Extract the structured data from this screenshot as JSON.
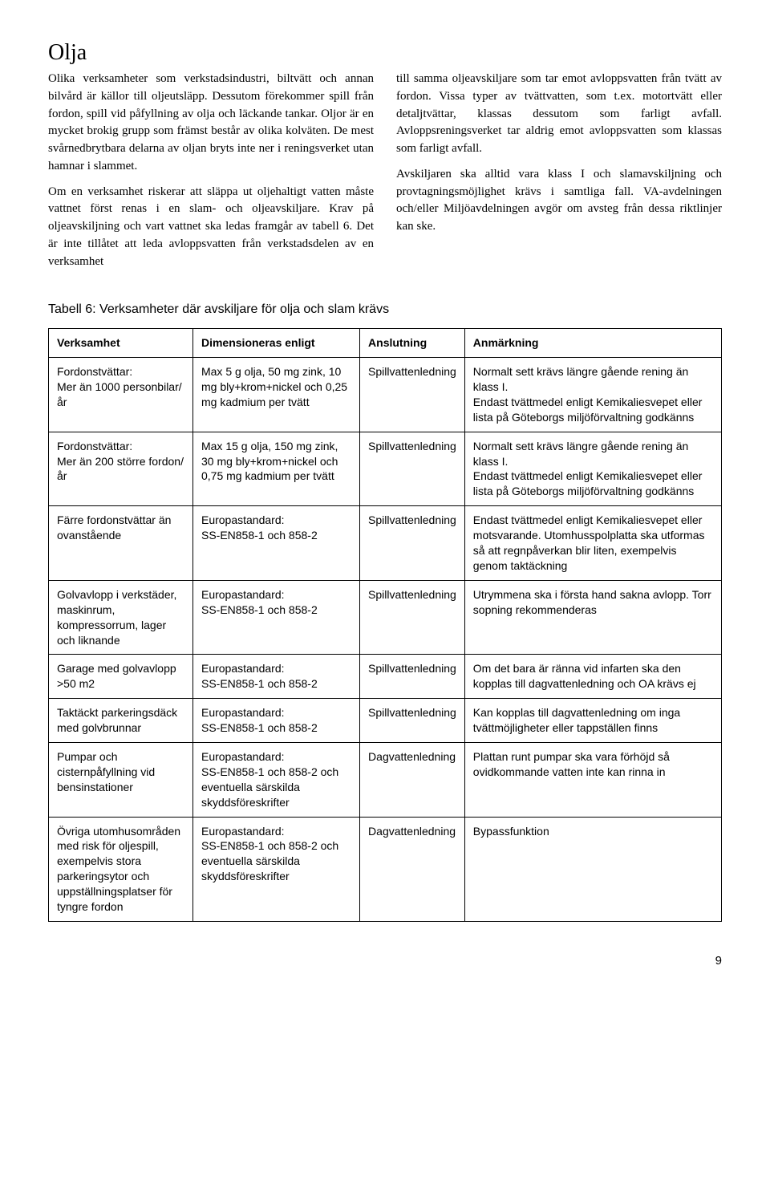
{
  "heading": "Olja",
  "left_column": {
    "p1": "Olika verksamheter som verkstadsindustri, biltvätt och annan bilvård är källor till oljeutsläpp. Dessutom förekommer spill från fordon, spill vid påfyllning av olja och läckande tankar. Oljor är en mycket brokig grupp som främst består av olika kolväten. De mest svårnedbrytbara delarna av oljan bryts inte ner i reningsverket utan hamnar i slammet.",
    "p2": "Om en verksamhet riskerar att släppa ut oljehaltigt vatten måste vattnet först renas i en slam- och oljeavskiljare. Krav på oljeavskiljning och vart vattnet ska ledas framgår av tabell 6. Det är inte tillåtet att leda avloppsvatten från verkstadsdelen av en verksamhet"
  },
  "right_column": {
    "p1": "till samma oljeavskiljare som tar emot avloppsvatten från tvätt av fordon. Vissa typer av tvättvatten, som t.ex. motortvätt eller detaljtvättar, klassas dessutom som farligt avfall. Avloppsreningsverket tar aldrig emot avloppsvatten som klassas som farligt avfall.",
    "p2": "Avskiljaren ska alltid vara klass I och slamavskiljning och provtagningsmöjlighet krävs i samtliga fall. VA-avdelningen och/eller Miljöavdelningen avgör om avsteg från dessa riktlinjer kan ske."
  },
  "table_caption": "Tabell 6: Verksamheter där avskiljare för olja och slam krävs",
  "table": {
    "headers": [
      "Verksamhet",
      "Dimensioneras enligt",
      "Anslutning",
      "Anmärkning"
    ],
    "rows": [
      {
        "verksamhet": "Fordonstvättar:\nMer än 1000 personbilar/år",
        "dim": "Max 5 g olja, 50 mg zink, 10 mg bly+krom+nickel och 0,25 mg kadmium per tvätt",
        "anslut": "Spillvattenledning",
        "anm": "Normalt sett krävs längre gående rening än klass I.\nEndast tvättmedel enligt Kemikaliesvepet eller lista på Göteborgs miljöförvaltning godkänns"
      },
      {
        "verksamhet": "Fordonstvättar:\nMer än 200 större fordon/år",
        "dim": "Max 15 g olja, 150 mg zink, 30 mg bly+krom+nickel och 0,75 mg kadmium per tvätt",
        "anslut": "Spillvattenledning",
        "anm": "Normalt sett krävs längre gående rening än klass I.\nEndast tvättmedel enligt Kemikaliesvepet eller lista på Göteborgs miljöförvaltning godkänns"
      },
      {
        "verksamhet": "Färre fordonstvättar än ovanstående",
        "dim": "Europastandard:\nSS-EN858-1 och 858-2",
        "anslut": "Spillvattenledning",
        "anm": "Endast tvättmedel enligt Kemikaliesvepet eller motsvarande. Utomhusspolplatta ska utformas så att regnpåverkan blir liten, exempelvis genom taktäckning"
      },
      {
        "verksamhet": "Golvavlopp i verkstäder, maskinrum, kompressorrum, lager och liknande",
        "dim": "Europastandard:\nSS-EN858-1 och 858-2",
        "anslut": "Spillvattenledning",
        "anm": "Utrymmena ska i första hand sakna avlopp. Torr sopning rekommenderas"
      },
      {
        "verksamhet": "Garage med golvavlopp >50 m2",
        "dim": "Europastandard:\nSS-EN858-1 och 858-2",
        "anslut": "Spillvattenledning",
        "anm": "Om det bara är ränna vid infarten ska den kopplas till dagvattenledning och OA krävs ej"
      },
      {
        "verksamhet": "Taktäckt parkeringsdäck med golvbrunnar",
        "dim": "Europastandard:\nSS-EN858-1 och 858-2",
        "anslut": "Spillvattenledning",
        "anm": "Kan kopplas till dagvattenledning om inga tvättmöjligheter eller tappställen finns"
      },
      {
        "verksamhet": "Pumpar och cisternpåfyllning vid bensinstationer",
        "dim": "Europastandard:\nSS-EN858-1 och 858-2 och eventuella särskilda skyddsföreskrifter",
        "anslut": "Dagvattenledning",
        "anm": "Plattan runt pumpar ska vara förhöjd så ovidkommande vatten inte kan rinna in"
      },
      {
        "verksamhet": "Övriga utomhusområden med risk för oljespill, exempelvis stora parkeringsytor och uppställningsplatser för tyngre fordon",
        "dim": "Europastandard:\nSS-EN858-1 och 858-2 och eventuella särskilda skyddsföreskrifter",
        "anslut": "Dagvattenledning",
        "anm": "Bypassfunktion"
      }
    ]
  },
  "page_number": "9"
}
